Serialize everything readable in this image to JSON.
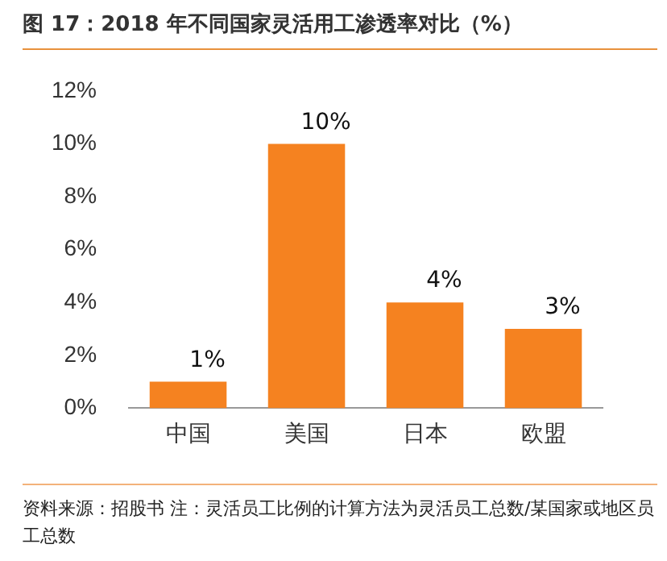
{
  "chart_data": {
    "type": "bar",
    "title": "图 17：2018 年不同国家灵活用工渗透率对比（%）",
    "categories": [
      "中国",
      "美国",
      "日本",
      "欧盟"
    ],
    "values": [
      1,
      10,
      4,
      3
    ],
    "value_labels": [
      "1%",
      "10%",
      "4%",
      "3%"
    ],
    "color": "#f58220",
    "ylim": [
      0,
      12
    ],
    "yticks": [
      {
        "value": 0,
        "label": "0%"
      },
      {
        "value": 2,
        "label": "2%"
      },
      {
        "value": 4,
        "label": "4%"
      },
      {
        "value": 6,
        "label": "6%"
      },
      {
        "value": 8,
        "label": "8%"
      },
      {
        "value": 10,
        "label": "10%"
      },
      {
        "value": 12,
        "label": "12%"
      }
    ],
    "grid": false,
    "legend": false,
    "annotations": [
      "资料来源：招股书 注：灵活员工比例的计算方法为灵活员工总数/某国家或地区员工总数"
    ]
  }
}
